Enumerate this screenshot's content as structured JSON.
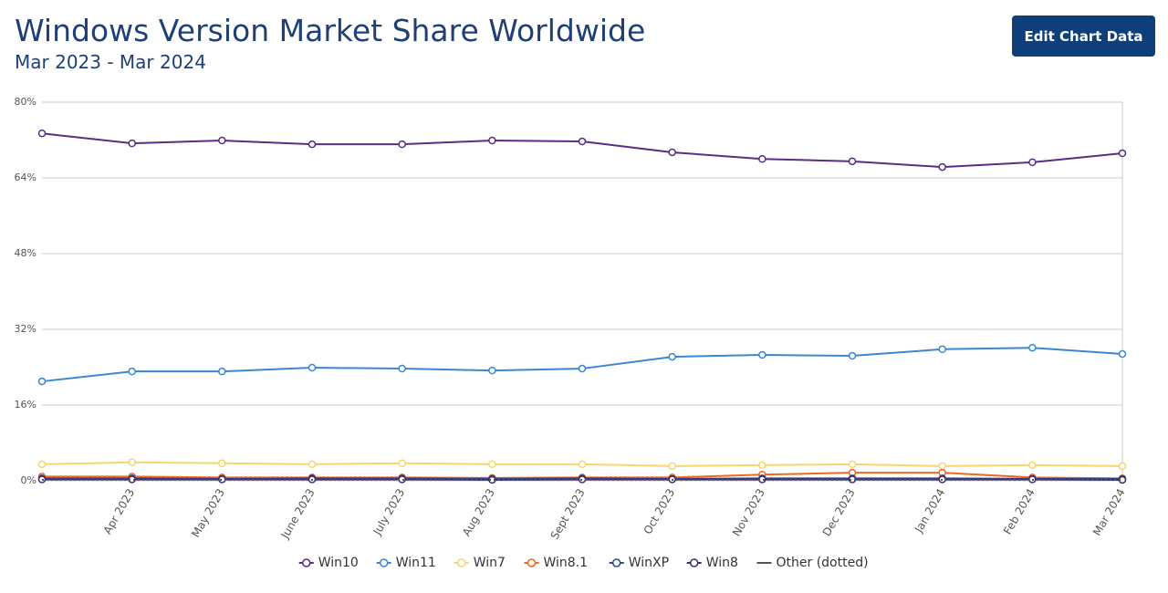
{
  "header": {
    "title": "Windows Version Market Share Worldwide",
    "subtitle": "Mar 2023 - Mar 2024",
    "button": "Edit Chart Data"
  },
  "chart_data": {
    "type": "line",
    "categories": [
      null,
      "Apr 2023",
      "May 2023",
      "June 2023",
      "July 2023",
      "Aug 2023",
      "Sept 2023",
      "Oct 2023",
      "Nov 2023",
      "Dec 2023",
      "Jan 2024",
      "Feb 2024",
      "Mar 2024"
    ],
    "ylim": [
      0,
      80
    ],
    "yticks": [
      {
        "value": 0,
        "label": "0%"
      },
      {
        "value": 16,
        "label": "16%"
      },
      {
        "value": 32,
        "label": "32%"
      },
      {
        "value": 48,
        "label": "48%"
      },
      {
        "value": 64,
        "label": "64%"
      },
      {
        "value": 80,
        "label": "80%"
      }
    ],
    "grid": true,
    "legend": "bottom",
    "series": [
      {
        "name": "Win10",
        "color": "#5b2c83",
        "values": [
          73.4,
          71.3,
          71.9,
          71.1,
          71.1,
          71.9,
          71.7,
          69.4,
          68.0,
          67.5,
          66.3,
          67.3,
          69.2
        ]
      },
      {
        "name": "Win11",
        "color": "#3a87d0",
        "values": [
          21.0,
          23.1,
          23.1,
          23.9,
          23.7,
          23.3,
          23.7,
          26.2,
          26.6,
          26.4,
          27.8,
          28.1,
          26.8
        ]
      },
      {
        "name": "Win7",
        "color": "#f5d76e",
        "values": [
          3.5,
          3.9,
          3.7,
          3.5,
          3.7,
          3.5,
          3.5,
          3.1,
          3.3,
          3.5,
          3.1,
          3.3,
          3.1
        ]
      },
      {
        "name": "Win8.1",
        "color": "#f26522",
        "values": [
          0.9,
          0.9,
          0.7,
          0.7,
          0.7,
          0.6,
          0.7,
          0.7,
          1.3,
          1.7,
          1.7,
          0.7,
          0.5
        ]
      },
      {
        "name": "WinXP",
        "color": "#2b4a8c",
        "values": [
          0.5,
          0.5,
          0.4,
          0.5,
          0.5,
          0.4,
          0.5,
          0.4,
          0.5,
          0.5,
          0.5,
          0.4,
          0.4
        ]
      },
      {
        "name": "Win8",
        "color": "#3d2a6e",
        "values": [
          0.3,
          0.3,
          0.3,
          0.3,
          0.3,
          0.2,
          0.3,
          0.3,
          0.3,
          0.3,
          0.3,
          0.3,
          0.2
        ]
      },
      {
        "name": "Other (dotted)",
        "color": "#555555",
        "line_style": "dotted",
        "values": [
          0.2,
          0.2,
          0.2,
          0.2,
          0.2,
          0.2,
          0.2,
          0.2,
          0.2,
          0.2,
          0.2,
          0.2,
          0.2
        ]
      }
    ]
  }
}
